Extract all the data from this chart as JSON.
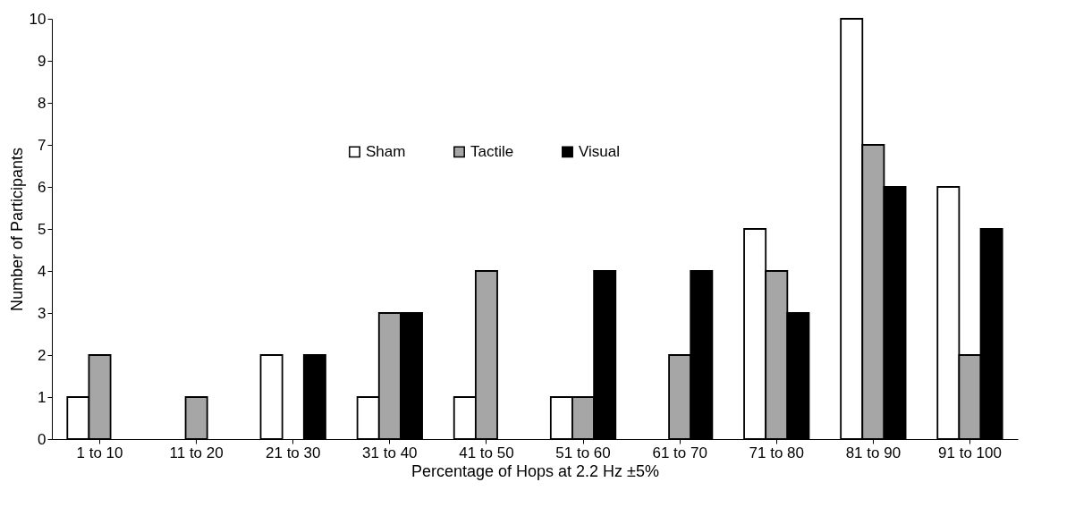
{
  "chart_data": {
    "type": "bar",
    "xlabel": "Percentage of Hops at 2.2 Hz ±5%",
    "ylabel": "Number of Participants",
    "categories": [
      "1 to 10",
      "11 to 20",
      "21 to 30",
      "31 to 40",
      "41 to 50",
      "51 to 60",
      "61 to 70",
      "71 to 80",
      "81 to 90",
      "91 to 100"
    ],
    "series": [
      {
        "name": "Sham",
        "color": "#ffffff",
        "values": [
          1,
          0,
          2,
          1,
          1,
          1,
          0,
          5,
          10,
          6
        ]
      },
      {
        "name": "Tactile",
        "color": "#a6a6a6",
        "values": [
          2,
          1,
          0,
          3,
          4,
          1,
          2,
          4,
          7,
          2
        ]
      },
      {
        "name": "Visual",
        "color": "#000000",
        "values": [
          0,
          0,
          2,
          3,
          0,
          4,
          4,
          3,
          6,
          5
        ]
      }
    ],
    "ylim": [
      0,
      10
    ],
    "yticks": [
      0,
      1,
      2,
      3,
      4,
      5,
      6,
      7,
      8,
      9,
      10
    ],
    "grid": false,
    "legend": "top"
  }
}
